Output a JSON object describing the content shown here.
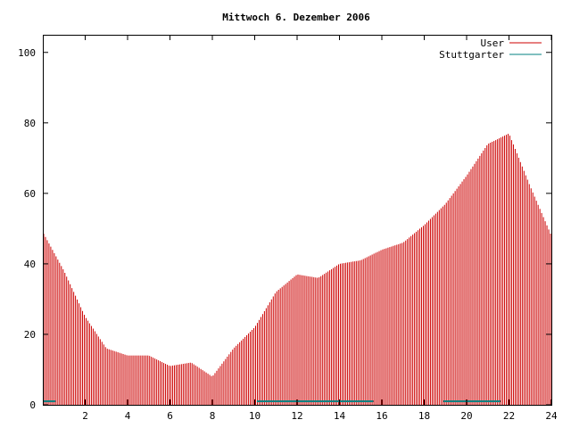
{
  "chart_data": {
    "type": "bar",
    "title": "Mittwoch 6. Dezember 2006",
    "xlabel": "",
    "ylabel": "",
    "xlim": [
      0,
      24
    ],
    "ylim": [
      0,
      105
    ],
    "xticks": [
      2,
      4,
      6,
      8,
      10,
      12,
      14,
      16,
      18,
      20,
      22,
      24
    ],
    "yticks": [
      0,
      20,
      40,
      60,
      80,
      100
    ],
    "legend_position": "top-right",
    "grid": false,
    "series": [
      {
        "name": "User",
        "color": "#cc0000",
        "x": [
          0.0,
          1.0,
          2.0,
          3.0,
          4.0,
          5.0,
          6.0,
          7.0,
          8.0,
          9.0,
          10.0,
          11.0,
          12.0,
          13.0,
          14.0,
          15.0,
          16.0,
          17.0,
          18.0,
          19.0,
          20.0,
          21.0,
          22.0,
          23.0,
          24.0
        ],
        "values": [
          49,
          38,
          25,
          16,
          14,
          14,
          11,
          12,
          8,
          16,
          22,
          32,
          37,
          36,
          40,
          41,
          44,
          46,
          51,
          57,
          65,
          74,
          77,
          62,
          48
        ]
      },
      {
        "name": "Stuttgarter",
        "color": "#008080",
        "ranges": [
          [
            0.0,
            0.6
          ],
          [
            10.1,
            15.6
          ],
          [
            18.9,
            21.6
          ]
        ],
        "value": 1
      }
    ]
  }
}
